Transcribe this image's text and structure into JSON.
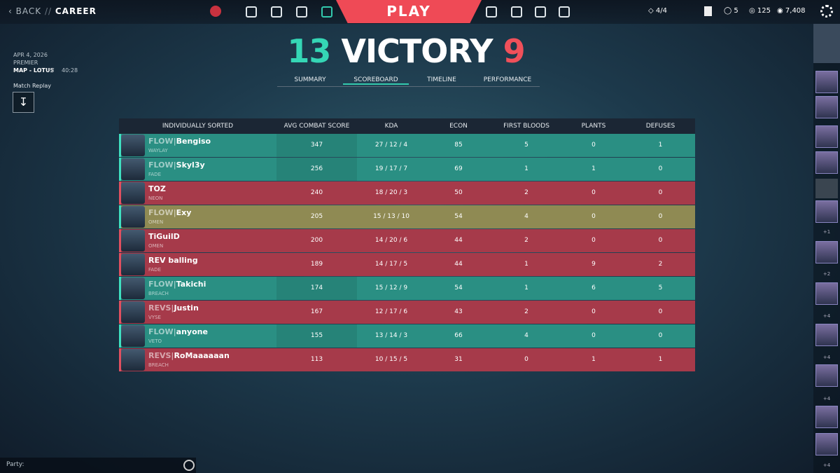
{
  "nav": {
    "back": "BACK",
    "separator": "//",
    "section": "CAREER",
    "play": "PLAY",
    "party_count": "4/4",
    "level": "5",
    "radianite": "125",
    "points": "7,408"
  },
  "match": {
    "date": "APR 4, 2026",
    "mode": "PREMIER",
    "map": "MAP - LOTUS",
    "separator": "//",
    "duration": "40:28",
    "replay": "Match Replay"
  },
  "result": {
    "ally_score": 13,
    "label": "VICTORY",
    "enemy_score": 9
  },
  "tabs": {
    "items": [
      "SUMMARY",
      "SCOREBOARD",
      "TIMELINE",
      "PERFORMANCE"
    ],
    "active": 1
  },
  "table": {
    "headers": [
      "INDIVIDUALLY SORTED",
      "AVG COMBAT SCORE",
      "KDA",
      "ECON",
      "FIRST BLOODS",
      "PLANTS",
      "DEFUSES"
    ],
    "rows": [
      {
        "team": "ally",
        "tag": "FLOW|",
        "name": "Bengiso",
        "agent": "WAYLAY",
        "acs": 347,
        "kda": "27 / 12 / 4",
        "econ": 85,
        "first_bloods": 5,
        "plants": 0,
        "defuses": 1
      },
      {
        "team": "ally",
        "tag": "FLOW|",
        "name": "Skyl3y",
        "agent": "FADE",
        "acs": 256,
        "kda": "19 / 17 / 7",
        "econ": 69,
        "first_bloods": 1,
        "plants": 1,
        "defuses": 0
      },
      {
        "team": "enemy",
        "name": "TOZ",
        "agent": "NEON",
        "acs": 240,
        "kda": "18 / 20 / 3",
        "econ": 50,
        "first_bloods": 2,
        "plants": 0,
        "defuses": 0
      },
      {
        "team": "self",
        "tag": "FLOW|",
        "name": "Exy",
        "agent": "OMEN",
        "acs": 205,
        "kda": "15 / 13 / 10",
        "econ": 54,
        "first_bloods": 4,
        "plants": 0,
        "defuses": 0
      },
      {
        "team": "enemy",
        "name": "TiGuilD",
        "agent": "OMEN",
        "acs": 200,
        "kda": "14 / 20 / 6",
        "econ": 44,
        "first_bloods": 2,
        "plants": 0,
        "defuses": 0
      },
      {
        "team": "enemy",
        "name": "REV balling",
        "agent": "FADE",
        "acs": 189,
        "kda": "14 / 17 / 5",
        "econ": 44,
        "first_bloods": 1,
        "plants": 9,
        "defuses": 2
      },
      {
        "team": "ally",
        "tag": "FLOW|",
        "name": "Takichi",
        "agent": "BREACH",
        "acs": 174,
        "kda": "15 / 12 / 9",
        "econ": 54,
        "first_bloods": 1,
        "plants": 6,
        "defuses": 5
      },
      {
        "team": "enemy",
        "tag": "REVS|",
        "name": "Justin",
        "agent": "VYSE",
        "acs": 167,
        "kda": "12 / 17 / 6",
        "econ": 43,
        "first_bloods": 2,
        "plants": 0,
        "defuses": 0
      },
      {
        "team": "ally",
        "tag": "FLOW|",
        "name": "anyone",
        "agent": "VETO",
        "acs": 155,
        "kda": "13 / 14 / 3",
        "econ": 66,
        "first_bloods": 4,
        "plants": 0,
        "defuses": 0
      },
      {
        "team": "enemy",
        "tag": "REVS|",
        "name": "RoMaaaaaan",
        "agent": "BREACH",
        "acs": 113,
        "kda": "10 / 15 / 5",
        "econ": 31,
        "first_bloods": 0,
        "plants": 1,
        "defuses": 1
      }
    ]
  },
  "friends": {
    "counts": [
      "+1",
      "+2",
      "+4",
      "+4",
      "+4",
      "+4"
    ]
  },
  "chat": {
    "label": "Party:"
  }
}
